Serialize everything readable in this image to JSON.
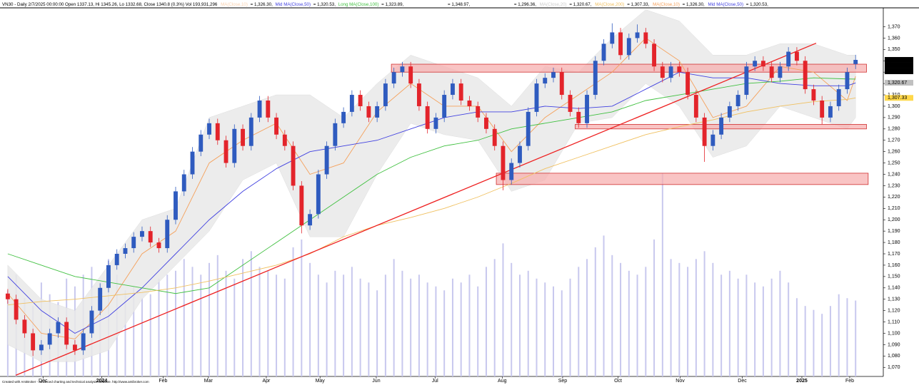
{
  "chart_data": {
    "type": "candlestick",
    "header": [
      "VN30 - Daily 2/7/2025 00:00:00 Open 1337.13, Hi 1345.26, Lo 1332.68, Close 1340.8 (0.3%) Vol 193,931,296",
      "= 1,326.30,",
      "= 1,320.53,",
      "= 1,323.89,",
      "= 1,348.97,",
      "= 1,296.36,",
      "MA(Close,20)",
      "= 1,320.67,",
      "= 1,307.33,",
      "= 1,326.30,",
      "= 1,320.53,"
    ],
    "footer": "Created with AmiBroker - advanced charting and technical analysis software. http://www.amibroker.com",
    "xlim": [
      -0.5,
      104.3
    ],
    "xticks": [
      {
        "value": 4.2,
        "label": "Dec"
      },
      {
        "value": 11.2,
        "label": "2024"
      },
      {
        "value": 18.5,
        "label": "Feb"
      },
      {
        "value": 23.9,
        "label": "Mar"
      },
      {
        "value": 30.8,
        "label": "Apr"
      },
      {
        "value": 37.2,
        "label": "May"
      },
      {
        "value": 43.9,
        "label": "Jun"
      },
      {
        "value": 50.9,
        "label": "Jul"
      },
      {
        "value": 58.9,
        "label": "Aug"
      },
      {
        "value": 66.1,
        "label": "Sep"
      },
      {
        "value": 72.7,
        "label": "Oct"
      },
      {
        "value": 80.1,
        "label": "Nov"
      },
      {
        "value": 87.5,
        "label": "Dec"
      },
      {
        "value": 94.6,
        "label": "2025"
      },
      {
        "value": 100.3,
        "label": "Feb"
      }
    ],
    "ylim": [
      1062,
      1386
    ],
    "yticks": [
      {
        "value": 1070,
        "label": "1,070"
      },
      {
        "value": 1080,
        "label": "1,080"
      },
      {
        "value": 1090,
        "label": "1,090"
      },
      {
        "value": 1100,
        "label": "1,100"
      },
      {
        "value": 1110,
        "label": "1,110"
      },
      {
        "value": 1120,
        "label": "1,120"
      },
      {
        "value": 1130,
        "label": "1,130"
      },
      {
        "value": 1140,
        "label": "1,140"
      },
      {
        "value": 1150,
        "label": "1,150"
      },
      {
        "value": 1160,
        "label": "1,160"
      },
      {
        "value": 1170,
        "label": "1,170"
      },
      {
        "value": 1180,
        "label": "1,180"
      },
      {
        "value": 1190,
        "label": "1,190"
      },
      {
        "value": 1200,
        "label": "1,200"
      },
      {
        "value": 1210,
        "label": "1,210"
      },
      {
        "value": 1220,
        "label": "1,220"
      },
      {
        "value": 1230,
        "label": "1,230"
      },
      {
        "value": 1240,
        "label": "1,240"
      },
      {
        "value": 1250,
        "label": "1,250"
      },
      {
        "value": 1260,
        "label": "1,260"
      },
      {
        "value": 1270,
        "label": "1,270"
      },
      {
        "value": 1280,
        "label": "1,280"
      },
      {
        "value": 1290,
        "label": "1,290"
      },
      {
        "value": 1300,
        "label": "1,300"
      },
      {
        "value": 1310,
        "label": "1,310"
      },
      {
        "value": 1320,
        "label": "1,320"
      },
      {
        "value": 1330,
        "label": "1,330"
      },
      {
        "value": 1340,
        "label": "1,340"
      },
      {
        "value": 1350,
        "label": "1,350"
      },
      {
        "value": 1360,
        "label": "1,360"
      },
      {
        "value": 1370,
        "label": "1,370"
      }
    ],
    "up_color": "#2f5bbf",
    "down_color": "#e3242b",
    "candles": {
      "open": [
        1135,
        1130,
        1112,
        1100,
        1085,
        1090,
        1100,
        1110,
        1090,
        1085,
        1100,
        1120,
        1140,
        1160,
        1170,
        1175,
        1185,
        1190,
        1180,
        1175,
        1200,
        1225,
        1240,
        1260,
        1275,
        1285,
        1270,
        1250,
        1280,
        1265,
        1290,
        1305,
        1290,
        1275,
        1265,
        1230,
        1195,
        1205,
        1240,
        1265,
        1285,
        1295,
        1310,
        1300,
        1290,
        1300,
        1320,
        1330,
        1335,
        1320,
        1300,
        1280,
        1290,
        1310,
        1320,
        1305,
        1300,
        1290,
        1280,
        1265,
        1235,
        1250,
        1265,
        1295,
        1320,
        1325,
        1330,
        1310,
        1295,
        1285,
        1310,
        1340,
        1355,
        1365,
        1345,
        1360,
        1365,
        1355,
        1335,
        1325,
        1335,
        1330,
        1310,
        1290,
        1265,
        1275,
        1290,
        1300,
        1310,
        1335,
        1340,
        1335,
        1325,
        1335,
        1348,
        1340,
        1315,
        1305,
        1290,
        1300,
        1315,
        1337.13
      ],
      "high": [
        1139,
        1134,
        1116,
        1104,
        1094,
        1104,
        1114,
        1114,
        1094,
        1104,
        1124,
        1144,
        1164,
        1174,
        1179,
        1189,
        1194,
        1194,
        1184,
        1204,
        1229,
        1244,
        1264,
        1279,
        1289,
        1289,
        1274,
        1284,
        1284,
        1294,
        1309,
        1309,
        1294,
        1279,
        1269,
        1234,
        1209,
        1244,
        1269,
        1289,
        1299,
        1314,
        1314,
        1304,
        1304,
        1324,
        1334,
        1339,
        1339,
        1324,
        1304,
        1294,
        1314,
        1324,
        1324,
        1309,
        1304,
        1294,
        1284,
        1269,
        1254,
        1269,
        1299,
        1324,
        1329,
        1334,
        1334,
        1314,
        1299,
        1314,
        1344,
        1359,
        1373,
        1369,
        1364,
        1372,
        1369,
        1359,
        1339,
        1339,
        1339,
        1334,
        1314,
        1294,
        1279,
        1294,
        1304,
        1314,
        1339,
        1344,
        1344,
        1339,
        1339,
        1352,
        1352,
        1344,
        1319,
        1309,
        1304,
        1319,
        1334,
        1345.26
      ],
      "low": [
        1126,
        1108,
        1096,
        1080,
        1081,
        1086,
        1096,
        1086,
        1081,
        1081,
        1096,
        1116,
        1136,
        1156,
        1166,
        1171,
        1181,
        1176,
        1171,
        1171,
        1196,
        1221,
        1236,
        1256,
        1271,
        1266,
        1246,
        1246,
        1261,
        1261,
        1286,
        1286,
        1271,
        1261,
        1226,
        1188,
        1191,
        1201,
        1236,
        1261,
        1281,
        1291,
        1296,
        1286,
        1286,
        1296,
        1316,
        1326,
        1316,
        1296,
        1276,
        1276,
        1286,
        1306,
        1301,
        1296,
        1286,
        1276,
        1261,
        1226,
        1231,
        1246,
        1261,
        1291,
        1316,
        1321,
        1306,
        1291,
        1281,
        1281,
        1306,
        1336,
        1351,
        1341,
        1341,
        1356,
        1351,
        1331,
        1321,
        1321,
        1326,
        1306,
        1286,
        1251,
        1261,
        1271,
        1286,
        1296,
        1306,
        1331,
        1331,
        1321,
        1321,
        1331,
        1336,
        1311,
        1301,
        1284,
        1286,
        1296,
        1311,
        1332.68
      ],
      "close": [
        1130,
        1112,
        1100,
        1085,
        1090,
        1100,
        1110,
        1090,
        1085,
        1100,
        1120,
        1140,
        1160,
        1170,
        1175,
        1185,
        1190,
        1180,
        1175,
        1200,
        1225,
        1240,
        1260,
        1275,
        1285,
        1270,
        1250,
        1280,
        1265,
        1290,
        1305,
        1290,
        1275,
        1265,
        1230,
        1195,
        1205,
        1240,
        1265,
        1285,
        1295,
        1310,
        1300,
        1290,
        1300,
        1320,
        1330,
        1335,
        1320,
        1300,
        1280,
        1290,
        1310,
        1320,
        1305,
        1300,
        1290,
        1280,
        1265,
        1235,
        1250,
        1265,
        1295,
        1320,
        1325,
        1330,
        1310,
        1295,
        1285,
        1310,
        1340,
        1355,
        1365,
        1345,
        1360,
        1365,
        1355,
        1335,
        1325,
        1335,
        1330,
        1310,
        1290,
        1265,
        1275,
        1290,
        1300,
        1310,
        1335,
        1340,
        1335,
        1325,
        1335,
        1348,
        1340,
        1315,
        1305,
        1290,
        1300,
        1315,
        1330,
        1340.8
      ]
    },
    "volume": {
      "color": "#c8c8ee",
      "vlim": [
        0,
        940
      ],
      "values": [
        220,
        260,
        200,
        180,
        240,
        210,
        190,
        250,
        230,
        260,
        280,
        240,
        300,
        260,
        220,
        230,
        200,
        210,
        250,
        260,
        270,
        300,
        280,
        260,
        290,
        310,
        270,
        250,
        300,
        320,
        280,
        270,
        260,
        250,
        330,
        350,
        290,
        260,
        240,
        270,
        260,
        280,
        250,
        240,
        220,
        260,
        300,
        270,
        250,
        260,
        240,
        230,
        220,
        250,
        240,
        260,
        230,
        280,
        300,
        340,
        290,
        260,
        270,
        250,
        240,
        230,
        220,
        250,
        280,
        300,
        330,
        360,
        310,
        290,
        270,
        260,
        280,
        350,
        520,
        300,
        290,
        280,
        300,
        320,
        290,
        260,
        270,
        250,
        260,
        240,
        230,
        250,
        270,
        240,
        200,
        180,
        170,
        160,
        180,
        210,
        200,
        193.93
      ]
    },
    "band": {
      "color": "#e9e9e9",
      "x": [
        0,
        4,
        8,
        12,
        16,
        20,
        24,
        28,
        32,
        36,
        40,
        44,
        48,
        52,
        56,
        60,
        64,
        68,
        72,
        76,
        80,
        84,
        88,
        92,
        96,
        100,
        101
      ],
      "upper": [
        1160,
        1130,
        1120,
        1160,
        1200,
        1210,
        1290,
        1300,
        1310,
        1310,
        1290,
        1320,
        1345,
        1335,
        1325,
        1300,
        1335,
        1330,
        1360,
        1385,
        1375,
        1345,
        1345,
        1355,
        1355,
        1345,
        1345
      ],
      "lower": [
        1090,
        1075,
        1075,
        1085,
        1130,
        1160,
        1190,
        1235,
        1250,
        1185,
        1185,
        1240,
        1285,
        1275,
        1270,
        1225,
        1235,
        1285,
        1290,
        1320,
        1300,
        1255,
        1265,
        1300,
        1290,
        1280,
        1290
      ]
    },
    "series": [
      {
        "name": "MA(Close,10)",
        "color": "#f5a05a",
        "x": [
          0,
          4,
          8,
          12,
          16,
          20,
          24,
          28,
          32,
          36,
          40,
          44,
          48,
          52,
          56,
          60,
          64,
          68,
          72,
          76,
          80,
          84,
          88,
          92,
          96,
          100,
          101
        ],
        "values": [
          1135,
          1100,
          1095,
          1125,
          1170,
          1190,
          1250,
          1270,
          1285,
          1240,
          1250,
          1295,
          1320,
          1300,
          1300,
          1260,
          1290,
          1310,
          1330,
          1360,
          1340,
          1290,
          1300,
          1335,
          1330,
          1305,
          1326.3
        ]
      },
      {
        "name": "Mid MA(Close,50)",
        "color": "#4040e0",
        "x": [
          0,
          4,
          8,
          12,
          16,
          20,
          24,
          28,
          32,
          36,
          40,
          44,
          48,
          52,
          56,
          60,
          64,
          68,
          72,
          76,
          80,
          84,
          88,
          92,
          96,
          100,
          101
        ],
        "values": [
          1150,
          1120,
          1100,
          1115,
          1140,
          1170,
          1200,
          1225,
          1245,
          1260,
          1265,
          1270,
          1280,
          1290,
          1295,
          1295,
          1300,
          1298,
          1300,
          1315,
          1330,
          1325,
          1325,
          1320,
          1318,
          1318,
          1320.53
        ]
      },
      {
        "name": "Long MA(Close,100)",
        "color": "#40c040",
        "x": [
          0,
          4,
          8,
          12,
          16,
          20,
          24,
          28,
          32,
          36,
          40,
          44,
          48,
          52,
          56,
          60,
          64,
          68,
          72,
          76,
          80,
          84,
          88,
          92,
          96,
          100,
          101
        ],
        "values": [
          1170,
          1160,
          1150,
          1145,
          1140,
          1135,
          1140,
          1160,
          1180,
          1200,
          1220,
          1240,
          1255,
          1265,
          1270,
          1280,
          1285,
          1290,
          1295,
          1305,
          1310,
          1315,
          1320,
          1322,
          1325,
          1324,
          1323.89
        ]
      },
      {
        "name": "MA(Close,200)",
        "color": "#f0c060",
        "x": [
          0,
          4,
          8,
          12,
          16,
          20,
          24,
          28,
          32,
          36,
          40,
          44,
          48,
          52,
          56,
          60,
          64,
          68,
          72,
          76,
          80,
          84,
          88,
          92,
          96,
          100,
          101
        ],
        "values": [
          1125,
          1128,
          1130,
          1133,
          1136,
          1140,
          1146,
          1153,
          1160,
          1170,
          1185,
          1195,
          1202,
          1210,
          1220,
          1232,
          1245,
          1255,
          1265,
          1275,
          1282,
          1288,
          1295,
          1300,
          1304,
          1306,
          1307.33
        ]
      }
    ],
    "trendline": {
      "color": "#ee2020",
      "x": [
        0.95,
        96.3
      ],
      "values": [
        1063,
        1355.5
      ]
    },
    "zones": {
      "color": "#f7b0b0",
      "items": [
        {
          "x": [
            45.7,
            102.3
          ],
          "range": [
            1330,
            1337
          ]
        },
        {
          "x": [
            67.6,
            102.3
          ],
          "range": [
            1280,
            1284
          ]
        },
        {
          "x": [
            58.2,
            102.5
          ],
          "range": [
            1231,
            1241
          ]
        }
      ]
    },
    "price_labels": [
      {
        "value": 1340.8,
        "label": "1,340.8",
        "color": "#000000"
      },
      {
        "value": 1340.8,
        "label": "1,340.8",
        "color": "#000000"
      },
      {
        "value": 1340.8,
        "label": "1,340.8",
        "color": "#000000"
      },
      {
        "value": 1320.67,
        "label": "1,320.67",
        "color": "#c0c0c0"
      },
      {
        "value": 1307.33,
        "label": "1,307.33",
        "color": "#ffd84a"
      }
    ]
  }
}
